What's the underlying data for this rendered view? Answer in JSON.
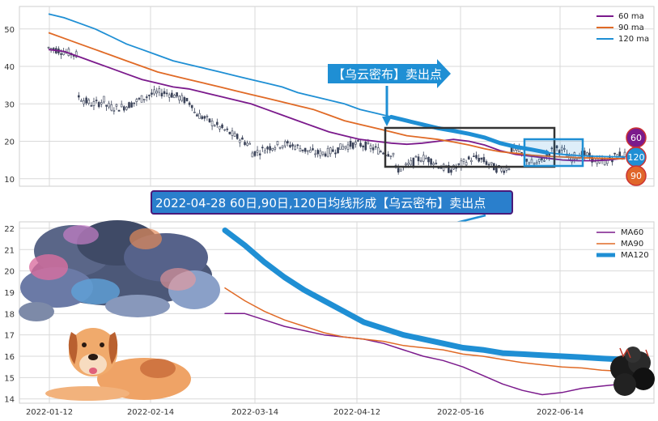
{
  "callouts": {
    "top_arrow_text": "【乌云密布】卖出点",
    "mid_banner_text": "2022-04-28 60日,90日,120日均线形成【乌云密布】卖出点"
  },
  "badges": [
    {
      "label": "60",
      "color": "#7b1a8c"
    },
    {
      "label": "120",
      "color": "#1f8fd4"
    },
    {
      "label": "90",
      "color": "#e0662a"
    }
  ],
  "colors": {
    "ma60": "#7b1a8c",
    "ma90": "#e06a26",
    "ma120": "#1f8fd4",
    "candle": "#3a4258",
    "grid": "#d9d9d9"
  },
  "icons": [
    "storm-cloud-icon",
    "dog-icon",
    "black-cloud-icon"
  ],
  "chart_data": [
    {
      "type": "line",
      "title": "",
      "ylim": [
        8,
        56
      ],
      "y_ticks": [
        10,
        20,
        30,
        40,
        50
      ],
      "legend": {
        "placement": "top-right",
        "entries": [
          "60 ma",
          "90 ma",
          "120 ma"
        ]
      },
      "grid": true,
      "series": [
        {
          "name": "60 ma",
          "values": [
            44.5,
            44,
            42.5,
            41,
            39.5,
            38,
            36.5,
            35.5,
            34.5,
            34,
            33,
            32,
            31,
            30,
            28.5,
            27,
            25.5,
            24,
            22.5,
            21.5,
            20.5,
            20,
            19.5,
            19.2,
            19.5,
            20,
            20.5,
            20,
            19,
            17.5,
            16.5,
            16,
            15.5,
            15,
            14.8,
            14.8,
            15,
            15.5
          ]
        },
        {
          "name": "90 ma",
          "values": [
            49,
            47.5,
            46,
            44.5,
            43,
            41.5,
            40,
            38.5,
            37.5,
            36.5,
            35.5,
            34.5,
            33.5,
            32.5,
            31.5,
            30.5,
            29.5,
            28.5,
            27,
            25.5,
            24.5,
            23.5,
            22.5,
            21.5,
            21,
            20.5,
            19.8,
            19,
            18,
            17.2,
            16.8,
            16.3,
            16,
            15.8,
            15.6,
            15.5,
            15.4,
            15.3
          ]
        },
        {
          "name": "120 ma",
          "values": [
            54,
            53,
            51.5,
            50,
            48,
            46,
            44.5,
            43,
            41.5,
            40.5,
            39.5,
            38.5,
            37.5,
            36.5,
            35.5,
            34.5,
            33,
            32,
            31,
            30,
            28.5,
            27.5,
            26.5,
            25.5,
            24.5,
            23.5,
            22.8,
            22,
            21,
            19.5,
            18.5,
            17.8,
            17,
            16.5,
            16.2,
            16,
            15.9,
            15.8
          ]
        }
      ]
    },
    {
      "type": "line",
      "title": "",
      "x_tick_labels": [
        "2022-01-12",
        "2022-02-14",
        "2022-03-14",
        "2022-04-12",
        "2022-05-16",
        "2022-06-14"
      ],
      "ylim": [
        13.8,
        22.3
      ],
      "y_ticks": [
        14,
        15,
        16,
        17,
        18,
        19,
        20,
        21,
        22
      ],
      "legend": {
        "placement": "top-right",
        "entries": [
          "MA60",
          "MA90",
          "MA120"
        ]
      },
      "grid": true,
      "series": [
        {
          "name": "MA60",
          "x": [
            0.0,
            0.05,
            0.1,
            0.15,
            0.2,
            0.25,
            0.3,
            0.35,
            0.4,
            0.45,
            0.5,
            0.55,
            0.6,
            0.65,
            0.7,
            0.75,
            0.8,
            0.85,
            0.9,
            0.95,
            1.0
          ],
          "values": [
            18.0,
            18.0,
            17.7,
            17.4,
            17.2,
            17.0,
            16.9,
            16.8,
            16.6,
            16.3,
            16.0,
            15.8,
            15.5,
            15.1,
            14.7,
            14.4,
            14.2,
            14.3,
            14.5,
            14.6,
            14.7
          ]
        },
        {
          "name": "MA90",
          "x": [
            0.0,
            0.05,
            0.1,
            0.15,
            0.2,
            0.25,
            0.3,
            0.35,
            0.4,
            0.45,
            0.5,
            0.55,
            0.6,
            0.65,
            0.7,
            0.75,
            0.8,
            0.85,
            0.9,
            0.95,
            1.0
          ],
          "values": [
            19.2,
            18.6,
            18.1,
            17.7,
            17.4,
            17.1,
            16.9,
            16.8,
            16.7,
            16.5,
            16.4,
            16.3,
            16.1,
            16.0,
            15.85,
            15.7,
            15.6,
            15.5,
            15.45,
            15.35,
            15.3
          ]
        },
        {
          "name": "MA120",
          "x": [
            0.0,
            0.05,
            0.1,
            0.15,
            0.2,
            0.25,
            0.3,
            0.35,
            0.4,
            0.45,
            0.5,
            0.55,
            0.6,
            0.65,
            0.7,
            0.75,
            0.8,
            0.85,
            0.9,
            0.95,
            1.0
          ],
          "values": [
            21.9,
            21.2,
            20.4,
            19.7,
            19.1,
            18.6,
            18.1,
            17.6,
            17.3,
            17.0,
            16.8,
            16.6,
            16.4,
            16.3,
            16.15,
            16.1,
            16.05,
            16.0,
            15.95,
            15.9,
            15.85
          ]
        }
      ]
    }
  ]
}
